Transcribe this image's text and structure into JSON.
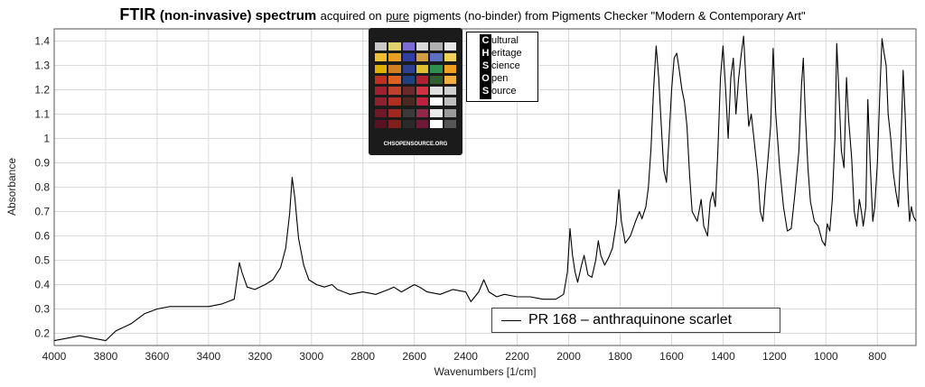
{
  "title": {
    "bold": "FTIR",
    "mid": "(non-invasive) spectrum",
    "rest_before": "acquired on",
    "pure": "pure",
    "rest_after": "pigments (no-binder) from Pigments Checker \"Modern & Contemporary Art\""
  },
  "logo": {
    "checker_footer": "CHSOPENSOURCE.ORG",
    "chsos_lines": [
      {
        "cap": "C",
        "rest": "ultural"
      },
      {
        "cap": "H",
        "rest": "eritage"
      },
      {
        "cap": "S",
        "rest": "cience"
      },
      {
        "cap": "O",
        "rest": "pen"
      },
      {
        "cap": "S",
        "rest": "ource"
      }
    ]
  },
  "legend": {
    "label": "PR 168 – anthraquinone scarlet"
  },
  "colors": {
    "line": "#000000",
    "grid": "#d9d9d9",
    "axis": "#555555"
  },
  "chart_data": {
    "type": "line",
    "xlabel": "Wavenumbers [1/cm]",
    "ylabel": "Absorbance",
    "xlim": [
      4000,
      650
    ],
    "ylim": [
      0.15,
      1.45
    ],
    "x_reversed": true,
    "grid": true,
    "legend_position": "bottom-center",
    "xticks": [
      4000,
      3800,
      3600,
      3400,
      3200,
      3000,
      2800,
      2600,
      2400,
      2200,
      2000,
      1800,
      1600,
      1400,
      1200,
      1000,
      800
    ],
    "yticks": [
      0.2,
      0.3,
      0.4,
      0.5,
      0.6,
      0.7,
      0.8,
      0.9,
      1.0,
      1.1,
      1.2,
      1.3,
      1.4
    ],
    "ytick_labels": [
      "0.2",
      "0.3",
      "0.4",
      "0.5",
      "0.6",
      "0.7",
      "0.8",
      "0.9",
      "1",
      "1.1",
      "1.2",
      "1.3",
      "1.4"
    ],
    "series": [
      {
        "name": "PR 168 – anthraquinone scarlet",
        "points": [
          [
            4000,
            0.17
          ],
          [
            3950,
            0.18
          ],
          [
            3900,
            0.19
          ],
          [
            3850,
            0.18
          ],
          [
            3800,
            0.17
          ],
          [
            3760,
            0.21
          ],
          [
            3700,
            0.24
          ],
          [
            3650,
            0.28
          ],
          [
            3600,
            0.3
          ],
          [
            3550,
            0.31
          ],
          [
            3500,
            0.31
          ],
          [
            3450,
            0.31
          ],
          [
            3400,
            0.31
          ],
          [
            3350,
            0.32
          ],
          [
            3300,
            0.34
          ],
          [
            3280,
            0.49
          ],
          [
            3270,
            0.45
          ],
          [
            3250,
            0.39
          ],
          [
            3220,
            0.38
          ],
          [
            3180,
            0.4
          ],
          [
            3150,
            0.42
          ],
          [
            3120,
            0.47
          ],
          [
            3100,
            0.55
          ],
          [
            3085,
            0.69
          ],
          [
            3075,
            0.84
          ],
          [
            3065,
            0.76
          ],
          [
            3050,
            0.59
          ],
          [
            3030,
            0.48
          ],
          [
            3010,
            0.42
          ],
          [
            2980,
            0.4
          ],
          [
            2950,
            0.39
          ],
          [
            2920,
            0.4
          ],
          [
            2900,
            0.38
          ],
          [
            2850,
            0.36
          ],
          [
            2800,
            0.37
          ],
          [
            2750,
            0.36
          ],
          [
            2700,
            0.38
          ],
          [
            2680,
            0.39
          ],
          [
            2650,
            0.37
          ],
          [
            2600,
            0.4
          ],
          [
            2580,
            0.39
          ],
          [
            2550,
            0.37
          ],
          [
            2500,
            0.36
          ],
          [
            2450,
            0.38
          ],
          [
            2400,
            0.37
          ],
          [
            2380,
            0.33
          ],
          [
            2350,
            0.37
          ],
          [
            2330,
            0.42
          ],
          [
            2310,
            0.37
          ],
          [
            2280,
            0.35
          ],
          [
            2250,
            0.36
          ],
          [
            2200,
            0.35
          ],
          [
            2150,
            0.35
          ],
          [
            2100,
            0.34
          ],
          [
            2050,
            0.34
          ],
          [
            2020,
            0.36
          ],
          [
            2005,
            0.45
          ],
          [
            1995,
            0.63
          ],
          [
            1985,
            0.52
          ],
          [
            1975,
            0.45
          ],
          [
            1965,
            0.41
          ],
          [
            1950,
            0.48
          ],
          [
            1940,
            0.52
          ],
          [
            1925,
            0.44
          ],
          [
            1910,
            0.43
          ],
          [
            1895,
            0.5
          ],
          [
            1885,
            0.58
          ],
          [
            1875,
            0.52
          ],
          [
            1860,
            0.48
          ],
          [
            1845,
            0.51
          ],
          [
            1830,
            0.55
          ],
          [
            1815,
            0.65
          ],
          [
            1805,
            0.79
          ],
          [
            1795,
            0.66
          ],
          [
            1780,
            0.57
          ],
          [
            1760,
            0.6
          ],
          [
            1740,
            0.66
          ],
          [
            1725,
            0.7
          ],
          [
            1715,
            0.67
          ],
          [
            1700,
            0.72
          ],
          [
            1690,
            0.8
          ],
          [
            1680,
            0.96
          ],
          [
            1670,
            1.2
          ],
          [
            1660,
            1.38
          ],
          [
            1650,
            1.25
          ],
          [
            1640,
            1.05
          ],
          [
            1630,
            0.87
          ],
          [
            1620,
            0.82
          ],
          [
            1610,
            1.0
          ],
          [
            1600,
            1.2
          ],
          [
            1590,
            1.33
          ],
          [
            1580,
            1.35
          ],
          [
            1570,
            1.28
          ],
          [
            1560,
            1.2
          ],
          [
            1550,
            1.15
          ],
          [
            1540,
            1.05
          ],
          [
            1530,
            0.85
          ],
          [
            1520,
            0.7
          ],
          [
            1500,
            0.66
          ],
          [
            1485,
            0.75
          ],
          [
            1475,
            0.64
          ],
          [
            1460,
            0.6
          ],
          [
            1450,
            0.74
          ],
          [
            1440,
            0.78
          ],
          [
            1430,
            0.72
          ],
          [
            1420,
            0.95
          ],
          [
            1410,
            1.25
          ],
          [
            1400,
            1.38
          ],
          [
            1390,
            1.2
          ],
          [
            1380,
            1.0
          ],
          [
            1370,
            1.25
          ],
          [
            1360,
            1.33
          ],
          [
            1350,
            1.1
          ],
          [
            1340,
            1.24
          ],
          [
            1330,
            1.34
          ],
          [
            1320,
            1.42
          ],
          [
            1310,
            1.22
          ],
          [
            1300,
            1.05
          ],
          [
            1290,
            1.1
          ],
          [
            1280,
            1.0
          ],
          [
            1265,
            0.85
          ],
          [
            1255,
            0.7
          ],
          [
            1245,
            0.66
          ],
          [
            1235,
            0.8
          ],
          [
            1225,
            0.92
          ],
          [
            1215,
            1.05
          ],
          [
            1205,
            1.37
          ],
          [
            1195,
            1.1
          ],
          [
            1180,
            0.88
          ],
          [
            1165,
            0.72
          ],
          [
            1150,
            0.62
          ],
          [
            1135,
            0.63
          ],
          [
            1120,
            0.78
          ],
          [
            1105,
            0.95
          ],
          [
            1095,
            1.22
          ],
          [
            1088,
            1.33
          ],
          [
            1080,
            1.1
          ],
          [
            1070,
            0.88
          ],
          [
            1060,
            0.74
          ],
          [
            1045,
            0.66
          ],
          [
            1030,
            0.64
          ],
          [
            1015,
            0.58
          ],
          [
            1003,
            0.56
          ],
          [
            995,
            0.65
          ],
          [
            985,
            0.62
          ],
          [
            975,
            0.75
          ],
          [
            965,
            1.0
          ],
          [
            958,
            1.39
          ],
          [
            950,
            1.2
          ],
          [
            940,
            0.95
          ],
          [
            930,
            0.88
          ],
          [
            920,
            1.25
          ],
          [
            912,
            1.08
          ],
          [
            900,
            0.92
          ],
          [
            890,
            0.7
          ],
          [
            880,
            0.64
          ],
          [
            870,
            0.75
          ],
          [
            862,
            0.7
          ],
          [
            855,
            0.64
          ],
          [
            845,
            0.72
          ],
          [
            837,
            1.16
          ],
          [
            828,
            0.9
          ],
          [
            818,
            0.66
          ],
          [
            810,
            0.72
          ],
          [
            800,
            0.9
          ],
          [
            790,
            1.2
          ],
          [
            782,
            1.41
          ],
          [
            774,
            1.35
          ],
          [
            766,
            1.3
          ],
          [
            758,
            1.1
          ],
          [
            748,
            1.0
          ],
          [
            738,
            0.86
          ],
          [
            728,
            0.78
          ],
          [
            718,
            0.72
          ],
          [
            708,
            1.0
          ],
          [
            700,
            1.28
          ],
          [
            692,
            1.1
          ],
          [
            682,
            0.8
          ],
          [
            675,
            0.66
          ],
          [
            668,
            0.72
          ],
          [
            660,
            0.68
          ],
          [
            650,
            0.66
          ]
        ]
      }
    ]
  }
}
